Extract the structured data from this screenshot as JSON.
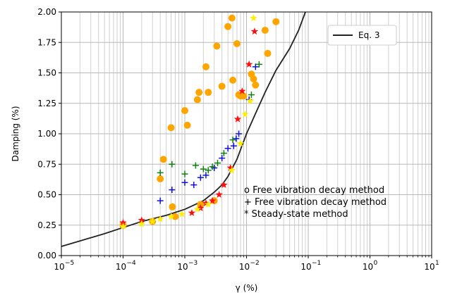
{
  "chart_data": {
    "type": "scatter",
    "title": "",
    "xlabel": "γ (%)",
    "ylabel": "Damping (%)",
    "xscale": "log",
    "xlim": [
      1e-05,
      10
    ],
    "ylim": [
      0,
      2
    ],
    "grid": true,
    "legend_placement": "top-right",
    "x_ticks": [
      1e-05,
      0.0001,
      0.001,
      0.01,
      0.1,
      1,
      10
    ],
    "x_tick_labels": [
      {
        "base": "10",
        "exp": "−5"
      },
      {
        "base": "10",
        "exp": "−4"
      },
      {
        "base": "10",
        "exp": "−3"
      },
      {
        "base": "10",
        "exp": "−2"
      },
      {
        "base": "10",
        "exp": "−1"
      },
      {
        "base": "10",
        "exp": "0"
      },
      {
        "base": "10",
        "exp": "1"
      }
    ],
    "y_ticks": [
      0,
      0.25,
      0.5,
      0.75,
      1.0,
      1.25,
      1.5,
      1.75,
      2.0
    ],
    "y_tick_labels": [
      "0.00",
      "0.25",
      "0.50",
      "0.75",
      "1.00",
      "1.25",
      "1.50",
      "1.75",
      "2.00"
    ],
    "annotations": [
      "o Free vibration decay method",
      "+ Free vibration decay method",
      "* Steady-state method"
    ],
    "curve": {
      "name": "Eq. 3",
      "color": "#222222",
      "points": [
        [
          1e-05,
          0.075
        ],
        [
          2e-05,
          0.12
        ],
        [
          5e-05,
          0.18
        ],
        [
          0.0001,
          0.23
        ],
        [
          0.0002,
          0.28
        ],
        [
          0.0005,
          0.33
        ],
        [
          0.001,
          0.38
        ],
        [
          0.002,
          0.45
        ],
        [
          0.003,
          0.52
        ],
        [
          0.004,
          0.58
        ],
        [
          0.005,
          0.65
        ],
        [
          0.007,
          0.79
        ],
        [
          0.01,
          1.0
        ],
        [
          0.015,
          1.2
        ],
        [
          0.02,
          1.34
        ],
        [
          0.03,
          1.52
        ],
        [
          0.05,
          1.7
        ],
        [
          0.07,
          1.85
        ],
        [
          0.09,
          2.0
        ]
      ]
    },
    "series": [
      {
        "marker": "circle",
        "color": "#FFA500",
        "points": [
          [
            0.0001,
            0.25
          ],
          [
            0.0003,
            0.28
          ],
          [
            0.0004,
            0.63
          ],
          [
            0.00045,
            0.79
          ],
          [
            0.0006,
            1.05
          ],
          [
            0.00063,
            0.4
          ],
          [
            0.0007,
            0.32
          ],
          [
            0.001,
            1.19
          ],
          [
            0.0011,
            1.07
          ],
          [
            0.0016,
            1.28
          ],
          [
            0.0017,
            1.34
          ],
          [
            0.0018,
            0.42
          ],
          [
            0.0022,
            1.55
          ],
          [
            0.0024,
            1.34
          ],
          [
            0.003,
            0.45
          ],
          [
            0.0033,
            1.72
          ],
          [
            0.004,
            1.39
          ],
          [
            0.005,
            1.88
          ],
          [
            0.0058,
            1.95
          ],
          [
            0.006,
            1.44
          ],
          [
            0.007,
            1.74
          ],
          [
            0.0075,
            1.32
          ],
          [
            0.008,
            1.31
          ],
          [
            0.009,
            1.31
          ],
          [
            0.012,
            1.49
          ],
          [
            0.013,
            1.45
          ],
          [
            0.014,
            1.4
          ],
          [
            0.02,
            1.85
          ],
          [
            0.022,
            1.66
          ],
          [
            0.03,
            1.92
          ]
        ]
      },
      {
        "marker": "plus",
        "color": "#1010DD",
        "points": [
          [
            0.0004,
            0.45
          ],
          [
            0.00062,
            0.54
          ],
          [
            0.001,
            0.6
          ],
          [
            0.0014,
            0.58
          ],
          [
            0.0018,
            0.64
          ],
          [
            0.0022,
            0.66
          ],
          [
            0.003,
            0.72
          ],
          [
            0.004,
            0.8
          ],
          [
            0.005,
            0.88
          ],
          [
            0.0062,
            0.9
          ],
          [
            0.0068,
            0.96
          ],
          [
            0.0075,
            1.0
          ],
          [
            0.011,
            1.28
          ],
          [
            0.014,
            1.55
          ]
        ]
      },
      {
        "marker": "plus",
        "color": "#108010",
        "points": [
          [
            0.0004,
            0.68
          ],
          [
            0.00062,
            0.75
          ],
          [
            0.001,
            0.67
          ],
          [
            0.0015,
            0.74
          ],
          [
            0.002,
            0.71
          ],
          [
            0.0024,
            0.7
          ],
          [
            0.0028,
            0.73
          ],
          [
            0.0034,
            0.76
          ],
          [
            0.0043,
            0.84
          ],
          [
            0.006,
            0.95
          ],
          [
            0.012,
            1.32
          ],
          [
            0.016,
            1.57
          ]
        ]
      },
      {
        "marker": "star",
        "color": "#FF1010",
        "points": [
          [
            0.0001,
            0.27
          ],
          [
            0.0002,
            0.29
          ],
          [
            0.0013,
            0.35
          ],
          [
            0.0018,
            0.39
          ],
          [
            0.0022,
            0.43
          ],
          [
            0.0028,
            0.45
          ],
          [
            0.0036,
            0.5
          ],
          [
            0.0043,
            0.58
          ],
          [
            0.0055,
            0.72
          ],
          [
            0.0072,
            1.12
          ],
          [
            0.0085,
            1.35
          ],
          [
            0.011,
            1.57
          ],
          [
            0.0135,
            1.84
          ]
        ]
      },
      {
        "marker": "star",
        "color": "#FFEE00",
        "points": [
          [
            0.0001,
            0.24
          ],
          [
            0.0002,
            0.26
          ],
          [
            0.0003,
            0.28
          ],
          [
            0.0004,
            0.3
          ],
          [
            0.0006,
            0.32
          ],
          [
            0.0009,
            0.34
          ],
          [
            0.0016,
            0.38
          ],
          [
            0.0024,
            0.42
          ],
          [
            0.0058,
            0.7
          ],
          [
            0.008,
            0.92
          ],
          [
            0.0095,
            1.16
          ],
          [
            0.0115,
            1.27
          ],
          [
            0.013,
            1.95
          ]
        ]
      }
    ]
  }
}
